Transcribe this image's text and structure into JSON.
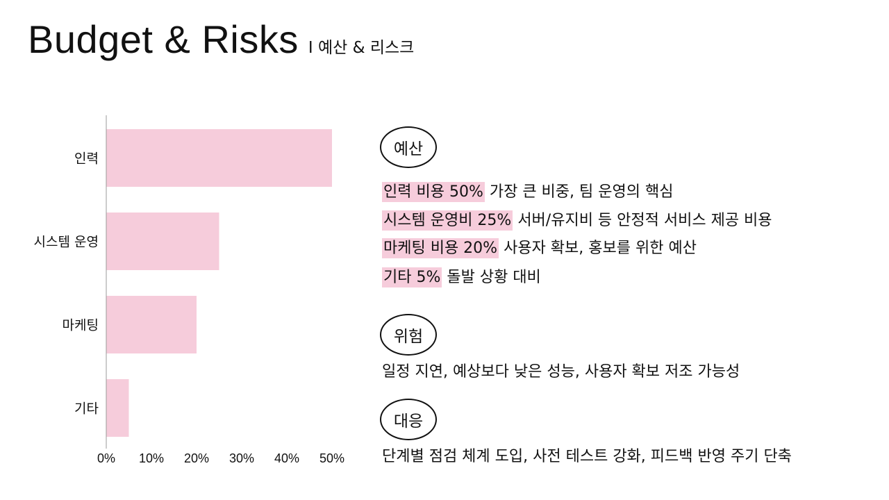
{
  "header": {
    "title": "Budget & Risks",
    "subtitle": "I 예산 & 리스크"
  },
  "chart_data": {
    "type": "bar",
    "orientation": "horizontal",
    "categories": [
      "인력",
      "시스템 운영",
      "마케팅",
      "기타"
    ],
    "values": [
      50,
      25,
      20,
      5
    ],
    "xlim": [
      0,
      50
    ],
    "xticks": [
      "0%",
      "10%",
      "20%",
      "30%",
      "40%",
      "50%"
    ],
    "bar_color": "#f6ccdb",
    "grid": false
  },
  "sections": {
    "budget": {
      "badge": "예산",
      "items": [
        {
          "highlight": "인력 비용 50%",
          "text": " 가장 큰 비중, 팀 운영의 핵심"
        },
        {
          "highlight": "시스템 운영비 25%",
          "text": " 서버/유지비 등 안정적 서비스 제공 비용"
        },
        {
          "highlight": "마케팅 비용 20%",
          "text": " 사용자 확보, 홍보를 위한 예산"
        },
        {
          "highlight": "기타 5%",
          "text": " 돌발 상황 대비"
        }
      ]
    },
    "risk": {
      "badge": "위험",
      "text": "일정 지연, 예상보다 낮은 성능, 사용자 확보 저조 가능성"
    },
    "response": {
      "badge": "대응",
      "text": "단계별 점검 체계 도입, 사전 테스트 강화, 피드백 반영 주기 단축"
    }
  },
  "colors": {
    "highlight": "#f6ccdb",
    "text": "#111111"
  }
}
